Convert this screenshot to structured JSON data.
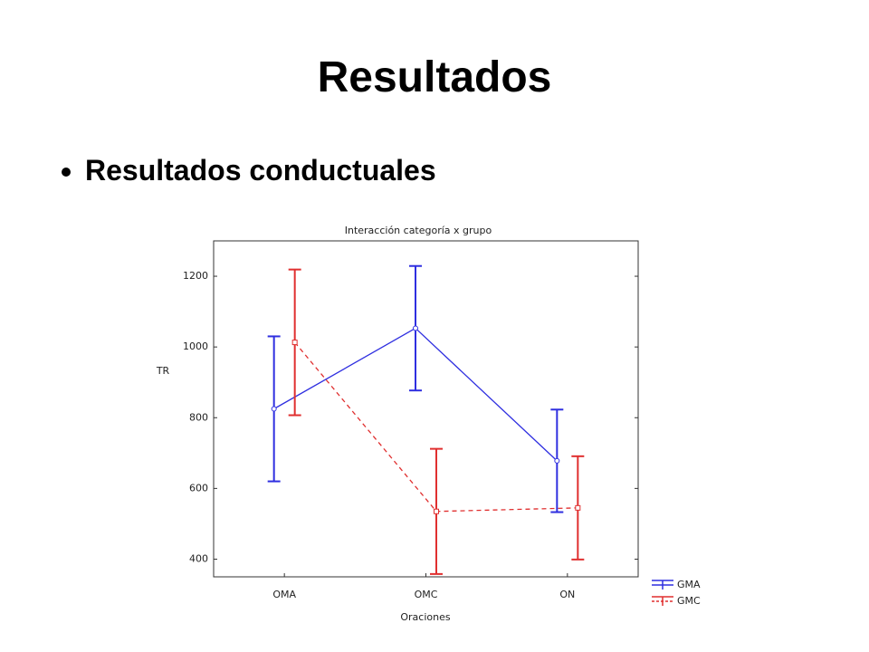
{
  "slide": {
    "title": "Resultados",
    "bullets": [
      "Resultados conductuales"
    ]
  },
  "chart_data": {
    "type": "line",
    "title": "Interacción categoría x grupo",
    "x_label": "Oraciones",
    "y_label": "TR",
    "categories": [
      "OMA",
      "OMC",
      "ON"
    ],
    "series": [
      {
        "name": "GMA",
        "color": "#2f2fe0",
        "marker": "circle",
        "dashed": false,
        "values": [
          825,
          1053,
          678
        ],
        "errors": [
          205,
          176,
          145
        ]
      },
      {
        "name": "GMC",
        "color": "#e02f2f",
        "marker": "square",
        "dashed": true,
        "values": [
          1013,
          535,
          545
        ],
        "errors": [
          206,
          177,
          146
        ]
      }
    ],
    "ylim": [
      350,
      1300
    ],
    "yticks": [
      400,
      600,
      800,
      1000,
      1200
    ]
  }
}
